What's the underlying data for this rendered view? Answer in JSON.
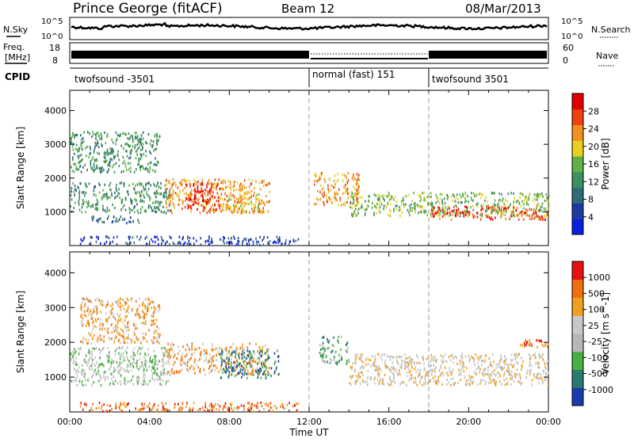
{
  "header": {
    "station": "Prince George (fitACF)",
    "beam": "Beam 12",
    "date": "08/Mar/2013"
  },
  "noise_panel": {
    "left_label": "N.Sky",
    "right_label": "N.Search",
    "left_ticks": [
      "10^5",
      "10^0"
    ],
    "right_ticks": [
      "10^5",
      "10^0"
    ]
  },
  "freq_panel": {
    "left_label_1": "Freq.",
    "left_label_2": "[MHz]",
    "left_ticks": [
      "18",
      "8"
    ],
    "right_label": "Nave",
    "right_ticks": [
      "60",
      "0"
    ]
  },
  "cpid_panel": {
    "label": "CPID",
    "segments": [
      {
        "name": "twofsound -3501",
        "start_hour": 0,
        "end_hour": 12
      },
      {
        "name": "normal (fast) 151",
        "start_hour": 12,
        "end_hour": 18
      },
      {
        "name": "twofsound 3501",
        "start_hour": 18,
        "end_hour": 24
      }
    ]
  },
  "chart_data": [
    {
      "type": "heatmap",
      "title": "",
      "xlabel": "Time UT",
      "ylabel": "Slant Range [km]",
      "xlim": [
        0,
        24
      ],
      "ylim": [
        0,
        4600
      ],
      "y_ticks": [
        "1000",
        "2000",
        "3000",
        "4000"
      ],
      "colorbar_label": "Power [dB]",
      "colorbar_ticks": [
        "4",
        "8",
        "12",
        "16",
        "20",
        "24",
        "28"
      ],
      "colorbar_range": [
        0,
        32
      ],
      "colors": [
        "#0a1ee0",
        "#1c3aa0",
        "#2e6a78",
        "#3d9060",
        "#5fb048",
        "#e8d020",
        "#f09020",
        "#f04010",
        "#e00000"
      ],
      "regions": [
        {
          "t_start": 0.0,
          "t_end": 4.5,
          "r_start": 2200,
          "r_end": 3400,
          "level": 3
        },
        {
          "t_start": 0.0,
          "t_end": 5.0,
          "r_start": 1000,
          "r_end": 1900,
          "level": 3
        },
        {
          "t_start": 1.0,
          "t_end": 3.5,
          "r_start": 700,
          "r_end": 900,
          "level": 2
        },
        {
          "t_start": 4.8,
          "t_end": 10.0,
          "r_start": 1000,
          "r_end": 2000,
          "level": 6
        },
        {
          "t_start": 5.8,
          "t_end": 7.5,
          "r_start": 1100,
          "r_end": 1900,
          "level": 8
        },
        {
          "t_start": 7.8,
          "t_end": 9.5,
          "r_start": 1000,
          "r_end": 1600,
          "level": 5
        },
        {
          "t_start": 12.2,
          "t_end": 14.5,
          "r_start": 1200,
          "r_end": 2200,
          "level": 6
        },
        {
          "t_start": 14.0,
          "t_end": 24.0,
          "r_start": 900,
          "r_end": 1600,
          "level": 4
        },
        {
          "t_start": 18.0,
          "t_end": 24.0,
          "r_start": 800,
          "r_end": 1200,
          "level": 7
        },
        {
          "t_start": 0.5,
          "t_end": 11.5,
          "r_start": 50,
          "r_end": 300,
          "level": 1
        }
      ]
    },
    {
      "type": "heatmap",
      "title": "",
      "xlabel": "Time UT",
      "ylabel": "Slant Range [km]",
      "xlim": [
        0,
        24
      ],
      "ylim": [
        0,
        4600
      ],
      "y_ticks": [
        "1000",
        "2000",
        "3000",
        "4000"
      ],
      "colorbar_label": "Velocity [m s^-1]",
      "colorbar_ticks": [
        "1000",
        "500",
        "100",
        "25",
        "-25",
        "-100",
        "-500",
        "-1000"
      ],
      "colors": [
        "#1a3ab0",
        "#2a7a70",
        "#48b040",
        "#b8b8b8",
        "#c8c8c8",
        "#f0a020",
        "#f07010",
        "#e81010"
      ],
      "regions": [
        {
          "t_start": 0.0,
          "t_end": 5.0,
          "r_start": 800,
          "r_end": 1900,
          "level": 3
        },
        {
          "t_start": 0.5,
          "t_end": 4.5,
          "r_start": 2000,
          "r_end": 3300,
          "level": 5
        },
        {
          "t_start": 4.8,
          "t_end": 10.0,
          "r_start": 1100,
          "r_end": 2000,
          "level": 5
        },
        {
          "t_start": 7.5,
          "t_end": 10.5,
          "r_start": 1000,
          "r_end": 1800,
          "level": 1
        },
        {
          "t_start": 12.5,
          "t_end": 14.0,
          "r_start": 1400,
          "r_end": 2200,
          "level": 2
        },
        {
          "t_start": 14.0,
          "t_end": 24.0,
          "r_start": 800,
          "r_end": 1700,
          "level": 4
        },
        {
          "t_start": 22.5,
          "t_end": 24.0,
          "r_start": 1900,
          "r_end": 2100,
          "level": 6
        },
        {
          "t_start": 0.5,
          "t_end": 11.5,
          "r_start": 50,
          "r_end": 300,
          "level": 6
        }
      ]
    }
  ],
  "x_axis": {
    "ticks": [
      "00:00",
      "04:00",
      "08:00",
      "12:00",
      "16:00",
      "20:00",
      "00:00"
    ],
    "label": "Time UT"
  }
}
